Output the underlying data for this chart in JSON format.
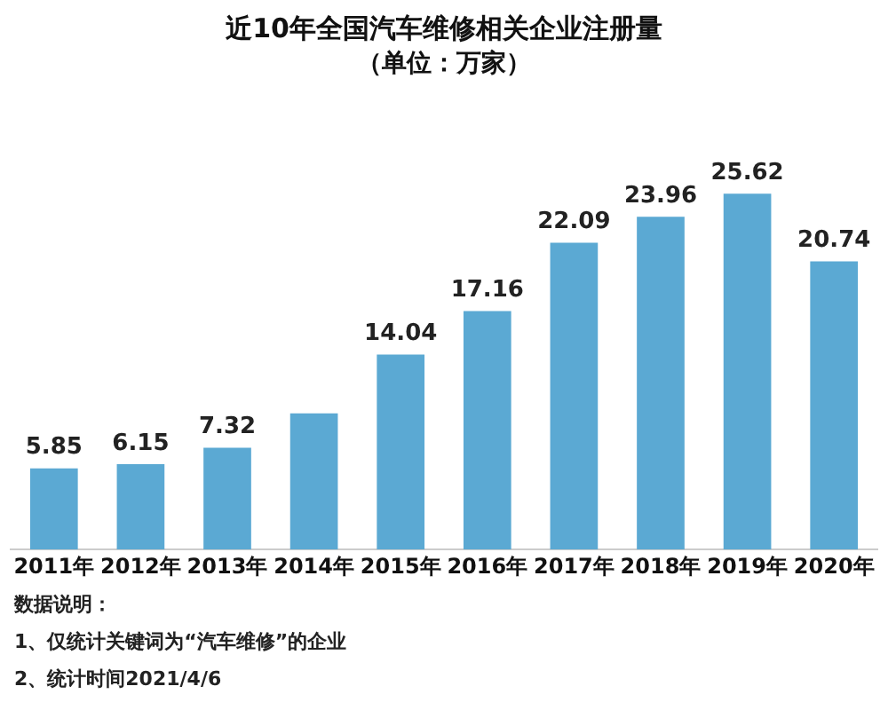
{
  "chart_data": {
    "type": "bar",
    "title": "近10年全国汽车维修相关企业注册量",
    "subtitle": "（单位：万家）",
    "categories": [
      "2011年",
      "2012年",
      "2013年",
      "2014年",
      "2015年",
      "2016年",
      "2017年",
      "2018年",
      "2019年",
      "2020年"
    ],
    "values": [
      5.85,
      6.15,
      7.32,
      9.8,
      14.04,
      17.16,
      22.09,
      23.96,
      25.62,
      20.74
    ],
    "value_labels": [
      "5.85",
      "6.15",
      "7.32",
      null,
      "14.04",
      "17.16",
      "22.09",
      "23.96",
      "25.62",
      "20.74"
    ],
    "color": "#5ba9d3",
    "tick_labels": "x",
    "grid": false,
    "legend": false,
    "annotations": [
      "数据说明：",
      "1、仅统计关键词为“汽车维修”的企业",
      "2、统计时间2021/4/6"
    ]
  }
}
